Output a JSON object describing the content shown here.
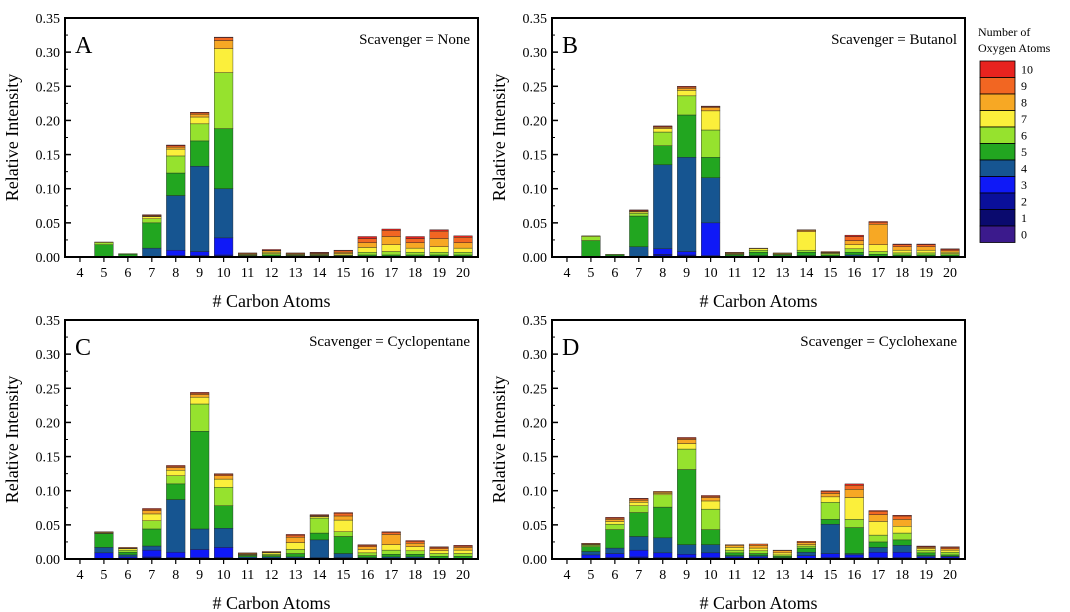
{
  "legend": {
    "title_line1": "Number of",
    "title_line2": "Oxygen Atoms",
    "entries": [
      {
        "label": "10",
        "color": "#e8231f"
      },
      {
        "label": "9",
        "color": "#f26622"
      },
      {
        "label": "8",
        "color": "#f7a824"
      },
      {
        "label": "7",
        "color": "#fbef3b"
      },
      {
        "label": "6",
        "color": "#96e22e"
      },
      {
        "label": "5",
        "color": "#22a620"
      },
      {
        "label": "4",
        "color": "#165591"
      },
      {
        "label": "3",
        "color": "#0f19f7"
      },
      {
        "label": "2",
        "color": "#0a0f9a"
      },
      {
        "label": "1",
        "color": "#0a0a6e"
      },
      {
        "label": "0",
        "color": "#3b1a8c"
      }
    ]
  },
  "chart_data": [
    {
      "type": "bar",
      "stacked": true,
      "panel": "A",
      "annotation": "Scavenger = None",
      "xlabel": "# Carbon Atoms",
      "ylabel": "Relative Intensity",
      "ylim": [
        0,
        0.35
      ],
      "yticks": [
        "0.00",
        "0.05",
        "0.10",
        "0.15",
        "0.20",
        "0.25",
        "0.30",
        "0.35"
      ],
      "categories": [
        "4",
        "5",
        "6",
        "7",
        "8",
        "9",
        "10",
        "11",
        "12",
        "13",
        "14",
        "15",
        "16",
        "17",
        "18",
        "19",
        "20"
      ],
      "series": [
        {
          "values": [
            0,
            0,
            0,
            0,
            0,
            0,
            0,
            0,
            0,
            0,
            0,
            0,
            0,
            0,
            0,
            0,
            0
          ]
        },
        {
          "values": [
            0,
            0,
            0,
            0,
            0,
            0,
            0,
            0,
            0,
            0,
            0,
            0,
            0,
            0,
            0,
            0,
            0
          ]
        },
        {
          "values": [
            0,
            0,
            0,
            0,
            0.002,
            0.002,
            0.003,
            0,
            0,
            0,
            0,
            0,
            0,
            0,
            0,
            0,
            0
          ]
        },
        {
          "values": [
            0,
            0,
            0,
            0,
            0.008,
            0.006,
            0.025,
            0,
            0,
            0,
            0,
            0,
            0,
            0,
            0,
            0,
            0
          ]
        },
        {
          "values": [
            0,
            0.001,
            0.001,
            0.013,
            0.08,
            0.125,
            0.072,
            0.001,
            0.001,
            0.001,
            0.001,
            0.001,
            0.001,
            0.001,
            0.001,
            0.001,
            0.001
          ]
        },
        {
          "values": [
            0,
            0.017,
            0.003,
            0.037,
            0.033,
            0.037,
            0.088,
            0.001,
            0.002,
            0.001,
            0.001,
            0.001,
            0.002,
            0.002,
            0.002,
            0.002,
            0.002
          ]
        },
        {
          "values": [
            0,
            0.003,
            0.001,
            0.006,
            0.025,
            0.025,
            0.082,
            0.001,
            0.002,
            0.001,
            0.001,
            0.001,
            0.004,
            0.005,
            0.004,
            0.004,
            0.004
          ]
        },
        {
          "values": [
            0,
            0.001,
            0,
            0.003,
            0.01,
            0.01,
            0.035,
            0.001,
            0.002,
            0.001,
            0.001,
            0.002,
            0.007,
            0.01,
            0.006,
            0.008,
            0.006
          ]
        },
        {
          "values": [
            0,
            0,
            0,
            0.001,
            0.003,
            0.004,
            0.012,
            0.001,
            0.002,
            0.001,
            0.001,
            0.002,
            0.007,
            0.012,
            0.008,
            0.012,
            0.008
          ]
        },
        {
          "values": [
            0,
            0,
            0,
            0.001,
            0.002,
            0.002,
            0.004,
            0.001,
            0.001,
            0.001,
            0.001,
            0.002,
            0.006,
            0.009,
            0.006,
            0.011,
            0.008
          ]
        },
        {
          "values": [
            0,
            0,
            0,
            0.001,
            0.001,
            0.001,
            0.001,
            0,
            0.001,
            0,
            0.001,
            0.001,
            0.003,
            0.002,
            0.003,
            0.002,
            0.002
          ]
        }
      ]
    },
    {
      "type": "bar",
      "stacked": true,
      "panel": "B",
      "annotation": "Scavenger = Butanol",
      "xlabel": "# Carbon Atoms",
      "ylabel": "Relative Intensity",
      "ylim": [
        0,
        0.35
      ],
      "yticks": [
        "0.00",
        "0.05",
        "0.10",
        "0.15",
        "0.20",
        "0.25",
        "0.30",
        "0.35"
      ],
      "categories": [
        "4",
        "5",
        "6",
        "7",
        "8",
        "9",
        "10",
        "11",
        "12",
        "13",
        "14",
        "15",
        "16",
        "17",
        "18",
        "19",
        "20"
      ],
      "series": [
        {
          "values": [
            0,
            0,
            0,
            0,
            0,
            0,
            0,
            0,
            0,
            0,
            0,
            0,
            0,
            0,
            0,
            0,
            0
          ]
        },
        {
          "values": [
            0,
            0,
            0,
            0,
            0,
            0,
            0,
            0,
            0,
            0,
            0,
            0,
            0,
            0,
            0,
            0,
            0
          ]
        },
        {
          "values": [
            0,
            0,
            0,
            0,
            0.004,
            0.003,
            0.002,
            0,
            0,
            0,
            0,
            0,
            0,
            0,
            0,
            0,
            0
          ]
        },
        {
          "values": [
            0,
            0,
            0,
            0,
            0.008,
            0.005,
            0.048,
            0,
            0,
            0,
            0,
            0,
            0,
            0,
            0,
            0,
            0
          ]
        },
        {
          "values": [
            0,
            0.001,
            0.001,
            0.015,
            0.123,
            0.138,
            0.066,
            0.001,
            0.002,
            0.001,
            0.002,
            0.001,
            0.003,
            0.001,
            0.001,
            0.001,
            0.001
          ]
        },
        {
          "values": [
            0,
            0.023,
            0.002,
            0.045,
            0.028,
            0.062,
            0.03,
            0.002,
            0.005,
            0.002,
            0.005,
            0.002,
            0.004,
            0.003,
            0.002,
            0.002,
            0.002
          ]
        },
        {
          "values": [
            0,
            0.006,
            0.001,
            0.004,
            0.02,
            0.028,
            0.04,
            0.001,
            0.003,
            0.001,
            0.003,
            0.002,
            0.005,
            0.004,
            0.003,
            0.003,
            0.002
          ]
        },
        {
          "values": [
            0,
            0.001,
            0,
            0.002,
            0.005,
            0.008,
            0.028,
            0.001,
            0.002,
            0.001,
            0.027,
            0.001,
            0.006,
            0.01,
            0.004,
            0.004,
            0.002
          ]
        },
        {
          "values": [
            0,
            0,
            0,
            0.001,
            0.002,
            0.003,
            0.005,
            0.001,
            0.001,
            0.001,
            0.002,
            0.001,
            0.006,
            0.03,
            0.005,
            0.005,
            0.002
          ]
        },
        {
          "values": [
            0,
            0,
            0,
            0.001,
            0.001,
            0.002,
            0.001,
            0.001,
            0,
            0,
            0.001,
            0.001,
            0.006,
            0.003,
            0.003,
            0.003,
            0.002
          ]
        },
        {
          "values": [
            0,
            0,
            0,
            0.001,
            0.001,
            0.001,
            0.001,
            0,
            0,
            0,
            0,
            0,
            0.002,
            0.001,
            0.001,
            0.001,
            0.001
          ]
        }
      ]
    },
    {
      "type": "bar",
      "stacked": true,
      "panel": "C",
      "annotation": "Scavenger = Cyclopentane",
      "xlabel": "# Carbon Atoms",
      "ylabel": "Relative Intensity",
      "ylim": [
        0,
        0.35
      ],
      "yticks": [
        "0.00",
        "0.05",
        "0.10",
        "0.15",
        "0.20",
        "0.25",
        "0.30",
        "0.35"
      ],
      "categories": [
        "4",
        "5",
        "6",
        "7",
        "8",
        "9",
        "10",
        "11",
        "12",
        "13",
        "14",
        "15",
        "16",
        "17",
        "18",
        "19",
        "20"
      ],
      "series": [
        {
          "values": [
            0,
            0,
            0,
            0,
            0,
            0,
            0,
            0,
            0,
            0,
            0,
            0,
            0,
            0,
            0,
            0,
            0
          ]
        },
        {
          "values": [
            0,
            0,
            0,
            0,
            0,
            0,
            0,
            0,
            0,
            0,
            0,
            0,
            0,
            0,
            0,
            0,
            0
          ]
        },
        {
          "values": [
            0,
            0.001,
            0.001,
            0.003,
            0.002,
            0.002,
            0.002,
            0,
            0,
            0,
            0,
            0,
            0,
            0,
            0,
            0,
            0
          ]
        },
        {
          "values": [
            0,
            0.008,
            0.002,
            0.01,
            0.008,
            0.012,
            0.015,
            0.001,
            0.001,
            0.001,
            0.002,
            0.002,
            0.001,
            0.001,
            0.001,
            0,
            0
          ]
        },
        {
          "values": [
            0,
            0.008,
            0.003,
            0.006,
            0.077,
            0.03,
            0.028,
            0.002,
            0.002,
            0.002,
            0.026,
            0.006,
            0.001,
            0.002,
            0.002,
            0.001,
            0.001
          ]
        },
        {
          "values": [
            0,
            0.02,
            0.004,
            0.025,
            0.023,
            0.143,
            0.033,
            0.002,
            0.002,
            0.005,
            0.01,
            0.025,
            0.003,
            0.004,
            0.004,
            0.003,
            0.003
          ]
        },
        {
          "values": [
            0,
            0.001,
            0.003,
            0.012,
            0.012,
            0.04,
            0.027,
            0.001,
            0.002,
            0.006,
            0.022,
            0.007,
            0.004,
            0.006,
            0.005,
            0.004,
            0.004
          ]
        },
        {
          "values": [
            0,
            0.001,
            0.002,
            0.01,
            0.008,
            0.01,
            0.012,
            0.001,
            0.002,
            0.01,
            0.002,
            0.017,
            0.005,
            0.008,
            0.006,
            0.004,
            0.005
          ]
        },
        {
          "values": [
            0,
            0,
            0.001,
            0.005,
            0.004,
            0.004,
            0.005,
            0.001,
            0.001,
            0.008,
            0.001,
            0.006,
            0.004,
            0.015,
            0.005,
            0.003,
            0.004
          ]
        },
        {
          "values": [
            0,
            0,
            0.001,
            0.002,
            0.002,
            0.002,
            0.002,
            0.001,
            0.001,
            0.003,
            0.001,
            0.004,
            0.002,
            0.003,
            0.003,
            0.002,
            0.002
          ]
        },
        {
          "values": [
            0,
            0.001,
            0,
            0.001,
            0.001,
            0.001,
            0.001,
            0,
            0,
            0.001,
            0.001,
            0.001,
            0.001,
            0.001,
            0.001,
            0.001,
            0.001
          ]
        }
      ]
    },
    {
      "type": "bar",
      "stacked": true,
      "panel": "D",
      "annotation": "Scavenger = Cyclohexane",
      "xlabel": "# Carbon Atoms",
      "ylabel": "Relative Intensity",
      "ylim": [
        0,
        0.35
      ],
      "yticks": [
        "0.00",
        "0.05",
        "0.10",
        "0.15",
        "0.20",
        "0.25",
        "0.30",
        "0.35"
      ],
      "categories": [
        "4",
        "5",
        "6",
        "7",
        "8",
        "9",
        "10",
        "11",
        "12",
        "13",
        "14",
        "15",
        "16",
        "17",
        "18",
        "19",
        "20"
      ],
      "series": [
        {
          "values": [
            0,
            0,
            0,
            0,
            0,
            0,
            0,
            0,
            0,
            0,
            0,
            0,
            0,
            0,
            0,
            0,
            0
          ]
        },
        {
          "values": [
            0,
            0,
            0,
            0,
            0,
            0,
            0,
            0,
            0,
            0,
            0,
            0,
            0,
            0,
            0,
            0,
            0
          ]
        },
        {
          "values": [
            0,
            0.001,
            0.002,
            0.003,
            0.002,
            0.002,
            0.002,
            0.001,
            0.001,
            0,
            0.001,
            0.002,
            0.002,
            0.002,
            0.002,
            0.001,
            0.001
          ]
        },
        {
          "values": [
            0,
            0.005,
            0.006,
            0.01,
            0.007,
            0.005,
            0.007,
            0.002,
            0.002,
            0.001,
            0.004,
            0.006,
            0.004,
            0.008,
            0.008,
            0.002,
            0.002
          ]
        },
        {
          "values": [
            0,
            0.005,
            0.008,
            0.02,
            0.022,
            0.014,
            0.012,
            0.002,
            0.002,
            0.001,
            0.005,
            0.043,
            0.002,
            0.007,
            0.01,
            0.002,
            0.001
          ]
        },
        {
          "values": [
            0,
            0.007,
            0.027,
            0.035,
            0.045,
            0.11,
            0.022,
            0.004,
            0.003,
            0.002,
            0.006,
            0.007,
            0.038,
            0.008,
            0.008,
            0.004,
            0.002
          ]
        },
        {
          "values": [
            0,
            0.002,
            0.008,
            0.01,
            0.018,
            0.03,
            0.03,
            0.004,
            0.004,
            0.002,
            0.003,
            0.025,
            0.012,
            0.01,
            0.01,
            0.004,
            0.004
          ]
        },
        {
          "values": [
            0,
            0.001,
            0.004,
            0.005,
            0.002,
            0.008,
            0.012,
            0.004,
            0.004,
            0.003,
            0.002,
            0.008,
            0.032,
            0.02,
            0.01,
            0.002,
            0.003
          ]
        },
        {
          "values": [
            0,
            0.001,
            0.003,
            0.003,
            0.002,
            0.006,
            0.005,
            0.003,
            0.004,
            0.003,
            0.003,
            0.005,
            0.012,
            0.01,
            0.01,
            0.002,
            0.002
          ]
        },
        {
          "values": [
            0,
            0.001,
            0.002,
            0.002,
            0.001,
            0.002,
            0.002,
            0.001,
            0.002,
            0.001,
            0.002,
            0.003,
            0.006,
            0.005,
            0.005,
            0.001,
            0.002
          ]
        },
        {
          "values": [
            0,
            0,
            0.001,
            0.001,
            0,
            0.001,
            0.001,
            0,
            0,
            0,
            0,
            0.001,
            0.002,
            0.001,
            0.001,
            0.001,
            0.001
          ]
        }
      ]
    }
  ]
}
